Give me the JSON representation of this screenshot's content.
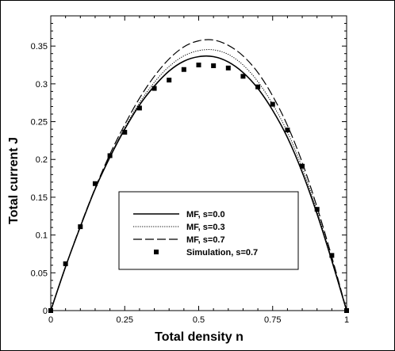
{
  "chart_data": {
    "type": "line",
    "xlabel": "Total density n",
    "ylabel": "Total current J",
    "xlim": [
      0,
      1
    ],
    "ylim": [
      0,
      0.39
    ],
    "xticks": [
      0,
      0.25,
      0.5,
      0.75,
      1
    ],
    "xtick_labels": [
      "0",
      "0.25",
      "0.5",
      "0.75",
      "1"
    ],
    "yticks": [
      0,
      0.05,
      0.1,
      0.15,
      0.2,
      0.25,
      0.3,
      0.35
    ],
    "ytick_labels": [
      "0",
      "0.05",
      "0.1",
      "0.15",
      "0.2",
      "0.25",
      "0.3",
      "0.35"
    ],
    "grid": false,
    "legend_position": "center",
    "x": [
      0,
      0.05,
      0.1,
      0.15,
      0.2,
      0.25,
      0.3,
      0.35,
      0.4,
      0.45,
      0.5,
      0.55,
      0.6,
      0.65,
      0.7,
      0.75,
      0.8,
      0.85,
      0.9,
      0.95,
      1
    ],
    "series": [
      {
        "name": "MF, s=0.0",
        "style": "solid",
        "values": [
          0,
          0.058,
          0.111,
          0.161,
          0.203,
          0.24,
          0.272,
          0.297,
          0.317,
          0.33,
          0.336,
          0.336,
          0.329,
          0.315,
          0.294,
          0.265,
          0.229,
          0.183,
          0.128,
          0.066,
          0
        ]
      },
      {
        "name": "MF, s=0.3",
        "style": "dotted",
        "values": [
          0,
          0.058,
          0.111,
          0.161,
          0.204,
          0.242,
          0.275,
          0.302,
          0.323,
          0.337,
          0.344,
          0.345,
          0.339,
          0.325,
          0.303,
          0.273,
          0.236,
          0.189,
          0.132,
          0.068,
          0
        ]
      },
      {
        "name": "MF, s=0.7",
        "style": "dashed",
        "values": [
          0,
          0.058,
          0.112,
          0.162,
          0.207,
          0.246,
          0.281,
          0.31,
          0.333,
          0.349,
          0.357,
          0.358,
          0.351,
          0.337,
          0.315,
          0.284,
          0.245,
          0.196,
          0.137,
          0.071,
          0
        ]
      },
      {
        "name": "Simulation, s=0.7",
        "style": "markers",
        "values": [
          0,
          0.062,
          0.111,
          0.168,
          0.205,
          0.236,
          0.268,
          0.294,
          0.305,
          0.319,
          0.325,
          0.324,
          0.321,
          0.31,
          0.296,
          0.273,
          0.239,
          0.191,
          0.134,
          0.073,
          0
        ]
      }
    ]
  }
}
